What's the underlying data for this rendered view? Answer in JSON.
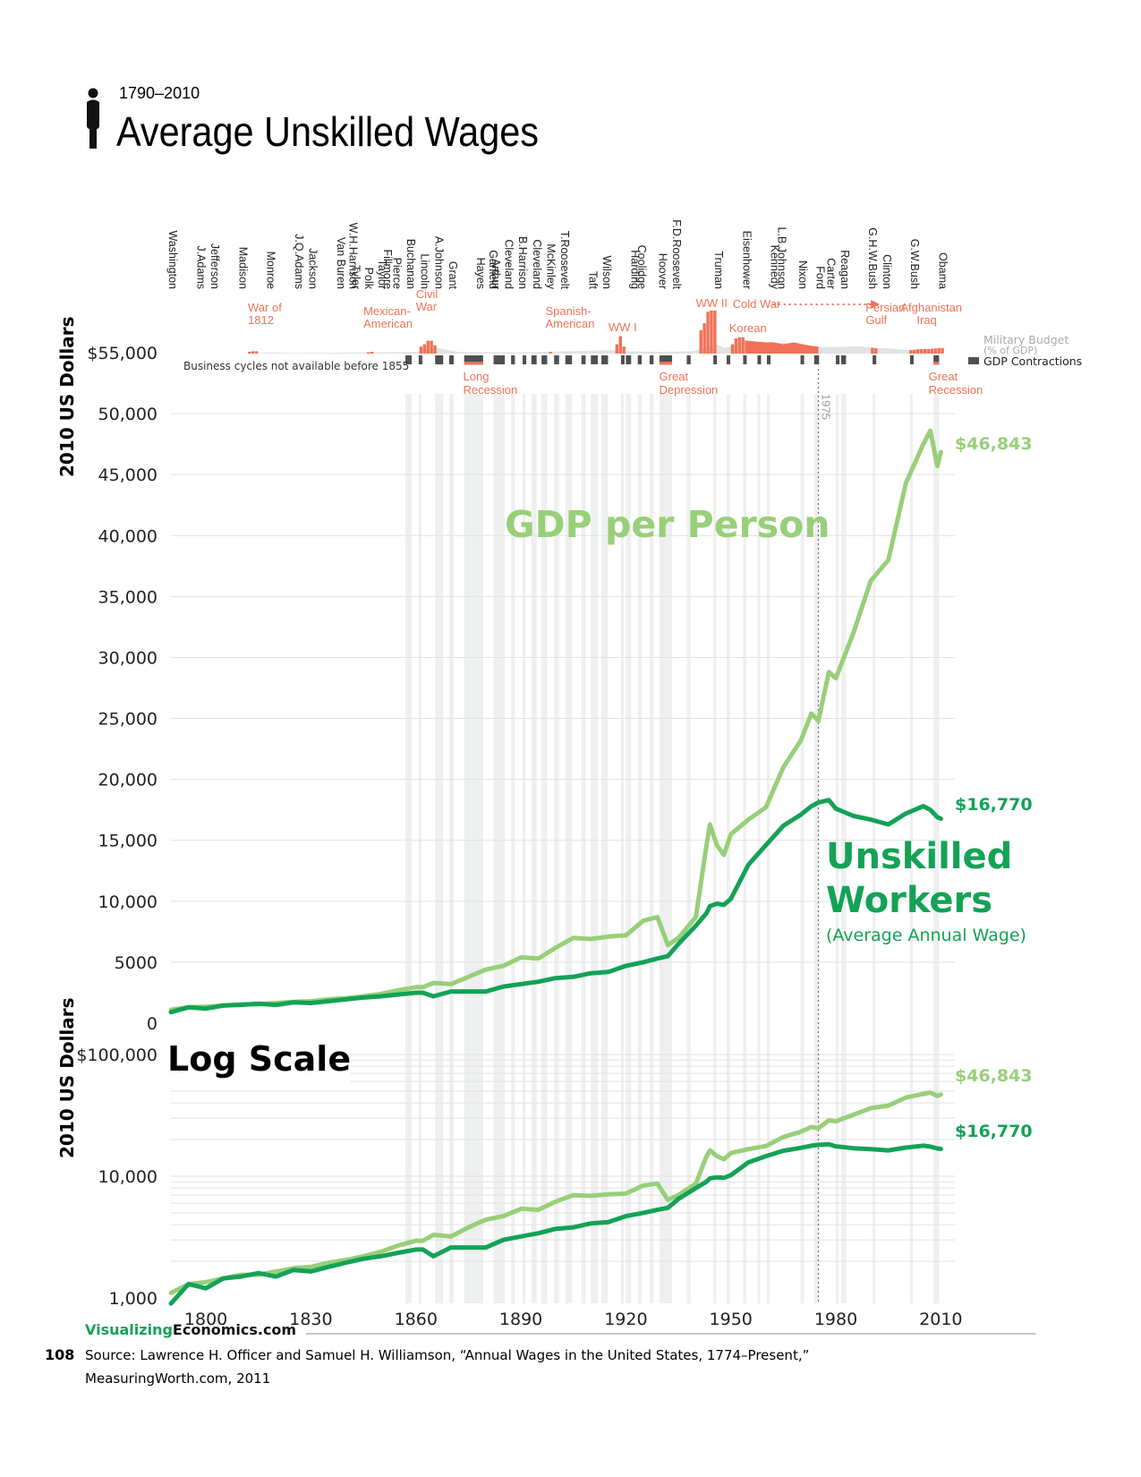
{
  "header": {
    "subtitle": "1790–2010",
    "title": "Average Unskilled Wages"
  },
  "colors": {
    "gdp": "#98cf79",
    "wage": "#14a256",
    "war": "#f07157",
    "contraction": "#4d4f52",
    "contraction_band": "#eeefef",
    "military_gray": "#c9cacb",
    "grid": "#e2e2e2"
  },
  "presidents": [
    {
      "name": "Washington",
      "year": 1789.5
    },
    {
      "name": "J.Adams",
      "year": 1797.5
    },
    {
      "name": "Jefferson",
      "year": 1801.5
    },
    {
      "name": "Madison",
      "year": 1809.5
    },
    {
      "name": "Monroe",
      "year": 1817.5
    },
    {
      "name": "J.Q.Adams",
      "year": 1825.5
    },
    {
      "name": "Jackson",
      "year": 1829.5
    },
    {
      "name": "Van Buren",
      "year": 1837.5
    },
    {
      "name": "W.H.Harrison",
      "year": 1841
    },
    {
      "name": "Tyler",
      "year": 1841.8
    },
    {
      "name": "Polk",
      "year": 1845.5
    },
    {
      "name": "Taylor",
      "year": 1849.3
    },
    {
      "name": "Fillmore",
      "year": 1850.8
    },
    {
      "name": "Pierce",
      "year": 1853.5
    },
    {
      "name": "Buchanan",
      "year": 1857.5
    },
    {
      "name": "Lincoln",
      "year": 1861.5
    },
    {
      "name": "A.Johnson",
      "year": 1865.5
    },
    {
      "name": "Grant",
      "year": 1869.5
    },
    {
      "name": "Hayes",
      "year": 1877.5
    },
    {
      "name": "Garfield",
      "year": 1881
    },
    {
      "name": "Arthur",
      "year": 1881.8
    },
    {
      "name": "Cleveland",
      "year": 1885.5
    },
    {
      "name": "B.Harrison",
      "year": 1889.5
    },
    {
      "name": "Cleveland",
      "year": 1893.5
    },
    {
      "name": "McKinley",
      "year": 1897.5
    },
    {
      "name": "T.Roosevelt",
      "year": 1901.5
    },
    {
      "name": "Taft",
      "year": 1909.5
    },
    {
      "name": "Wilson",
      "year": 1913.5
    },
    {
      "name": "Harding",
      "year": 1921.5
    },
    {
      "name": "Coolidge",
      "year": 1923.5
    },
    {
      "name": "Hoover",
      "year": 1929.5
    },
    {
      "name": "F.D.Roosevelt",
      "year": 1933.5
    },
    {
      "name": "Truman",
      "year": 1945.5
    },
    {
      "name": "Eisenhower",
      "year": 1953.5
    },
    {
      "name": "Kennedy",
      "year": 1961.5
    },
    {
      "name": "L.B.Johnson",
      "year": 1963.5
    },
    {
      "name": "Nixon",
      "year": 1969.5
    },
    {
      "name": "Ford",
      "year": 1974.5
    },
    {
      "name": "Carter",
      "year": 1977.5
    },
    {
      "name": "Reagan",
      "year": 1981.5
    },
    {
      "name": "G.H.W.Bush",
      "year": 1989.5
    },
    {
      "name": "Clinton",
      "year": 1993.5
    },
    {
      "name": "G.W.Bush",
      "year": 2001.5
    },
    {
      "name": "Obama",
      "year": 2009.5
    }
  ],
  "wars": [
    {
      "label": "War of 1812",
      "start": 1812,
      "end": 1815,
      "budget": [
        1.6,
        2,
        2
      ]
    },
    {
      "label": "Mexican-American",
      "start": 1846,
      "end": 1848,
      "budget": [
        1.2,
        1.5
      ]
    },
    {
      "label": "Civil War",
      "start": 1861,
      "end": 1865,
      "budget": [
        6,
        8,
        11,
        11,
        7
      ]
    },
    {
      "label": "Spanish-American",
      "start": 1898,
      "end": 1898,
      "budget": [
        1.5
      ]
    },
    {
      "label": "WW I",
      "start": 1917,
      "end": 1919,
      "budget": [
        8,
        15,
        6
      ]
    },
    {
      "label": "WW II",
      "start": 1941,
      "end": 1945,
      "budget": [
        20,
        26,
        36,
        37,
        37
      ]
    },
    {
      "label": "Korean",
      "start": 1950,
      "end": 1953,
      "budget": [
        8,
        13,
        14,
        14
      ]
    },
    {
      "label": "Persian Gulf",
      "start": 1990,
      "end": 1991,
      "budget": [
        5,
        4.5
      ]
    },
    {
      "label": "Afghanistan Iraq",
      "start": 2001,
      "end": 2010,
      "budget": [
        3,
        3.4,
        3.7,
        3.9,
        4,
        4,
        4.2,
        4.4,
        4.8,
        4.8
      ]
    }
  ],
  "cold_war": {
    "label": "Cold War",
    "start": 1955,
    "end": 1991
  },
  "military_budget_gray": [
    [
      1816,
      1
    ],
    [
      1825,
      0.6
    ],
    [
      1840,
      0.8
    ],
    [
      1860,
      1.5
    ],
    [
      1866,
      5
    ],
    [
      1872,
      1.5
    ],
    [
      1890,
      1
    ],
    [
      1917,
      3
    ],
    [
      1920,
      2
    ],
    [
      1930,
      1.5
    ],
    [
      1939,
      2
    ],
    [
      1946,
      8
    ],
    [
      1948,
      5
    ],
    [
      1950,
      6
    ],
    [
      1954,
      11
    ],
    [
      1960,
      9
    ],
    [
      1968,
      9
    ],
    [
      1975,
      6
    ],
    [
      1980,
      5.5
    ],
    [
      1986,
      6.5
    ],
    [
      1992,
      5
    ],
    [
      2000,
      3.2
    ],
    [
      2001,
      3
    ]
  ],
  "military_budget_cold_war": [
    [
      1954,
      11.2
    ],
    [
      1960,
      9.6
    ],
    [
      1962,
      9.8
    ],
    [
      1965,
      8
    ],
    [
      1968,
      9.6
    ],
    [
      1972,
      7
    ],
    [
      1975,
      6
    ]
  ],
  "contractions": [
    [
      1857,
      1858.8
    ],
    [
      1860.8,
      1861.5
    ],
    [
      1865.5,
      1867.8
    ],
    [
      1869.5,
      1870.8
    ],
    [
      1873.8,
      1879.2
    ],
    [
      1882.2,
      1885.4
    ],
    [
      1887.2,
      1888.3
    ],
    [
      1890.5,
      1891.3
    ],
    [
      1893,
      1894.5
    ],
    [
      1895.9,
      1897.5
    ],
    [
      1899.5,
      1900.9
    ],
    [
      1902.7,
      1904.6
    ],
    [
      1907.3,
      1908.5
    ],
    [
      1910,
      1912
    ],
    [
      1913,
      1914.9
    ],
    [
      1918.6,
      1919.2
    ],
    [
      1920,
      1921.5
    ],
    [
      1923.4,
      1924.5
    ],
    [
      1926.8,
      1927.9
    ],
    [
      1929.6,
      1933.2
    ],
    [
      1937.4,
      1938.5
    ],
    [
      1945,
      1945.8
    ],
    [
      1948.8,
      1949.8
    ],
    [
      1953.5,
      1954.4
    ],
    [
      1957.6,
      1958.3
    ],
    [
      1960.3,
      1961.1
    ],
    [
      1969.9,
      1970.9
    ],
    [
      1973.8,
      1975.2
    ],
    [
      1980,
      1980.5
    ],
    [
      1981.5,
      1982.9
    ],
    [
      1990.5,
      1991.2
    ],
    [
      2001.2,
      2001.9
    ],
    [
      2007.9,
      2009.5
    ]
  ],
  "annotations": {
    "military_budget": "Military Budget",
    "military_budget_sub": "(% of GDP)",
    "gdp_contractions": "GDP Contractions",
    "business_cycles_note": "Business cycles not available before 1855",
    "long_recession": "Long Recession",
    "great_depression": "Great Depression",
    "great_recession": "Great Recession",
    "year_1975": "1975"
  },
  "labels": {
    "y_axis": "2010 US Dollars",
    "gdp_label": "GDP per Person",
    "wage_label_1": "Unskilled",
    "wage_label_2": "Workers",
    "wage_label_3": "(Average Annual Wage)",
    "log_scale": "Log Scale",
    "end_gdp": "$46,843",
    "end_wage": "$16,770"
  },
  "chart_data": [
    {
      "type": "line",
      "title": "Average Unskilled Wages",
      "subtitle": "1790–2010",
      "scale": "linear",
      "ylabel": "2010 US Dollars",
      "ylim": [
        0,
        55000
      ],
      "yticks": [
        0,
        5000,
        10000,
        15000,
        20000,
        25000,
        30000,
        35000,
        40000,
        45000,
        50000,
        55000
      ],
      "ytick_labels": [
        "0",
        "5000",
        "10,000",
        "15,000",
        "20,000",
        "25,000",
        "30,000",
        "35,000",
        "40,000",
        "45,000",
        "50,000",
        "$55,000"
      ],
      "x": [
        1790,
        1795,
        1800,
        1805,
        1810,
        1815,
        1820,
        1825,
        1830,
        1835,
        1840,
        1845,
        1850,
        1855,
        1860,
        1862,
        1865,
        1870,
        1875,
        1880,
        1885,
        1890,
        1895,
        1900,
        1905,
        1910,
        1915,
        1920,
        1925,
        1929,
        1932,
        1935,
        1940,
        1943,
        1944,
        1946,
        1948,
        1950,
        1955,
        1960,
        1965,
        1970,
        1973,
        1975,
        1978,
        1980,
        1985,
        1990,
        1995,
        2000,
        2005,
        2007,
        2009,
        2010
      ],
      "series": [
        {
          "name": "GDP per Person",
          "values": [
            1100,
            1300,
            1350,
            1450,
            1550,
            1550,
            1650,
            1750,
            1800,
            1950,
            2050,
            2200,
            2400,
            2700,
            2950,
            2950,
            3300,
            3200,
            3800,
            4400,
            4700,
            5400,
            5300,
            6200,
            7000,
            6900,
            7100,
            7200,
            8400,
            8700,
            6400,
            7000,
            8700,
            14500,
            16300,
            14600,
            13800,
            15500,
            16700,
            17700,
            21000,
            23200,
            25400,
            24800,
            28800,
            28300,
            32000,
            36300,
            38000,
            44300,
            47500,
            48600,
            45700,
            46843
          ]
        },
        {
          "name": "Unskilled Workers (Average Annual Wage)",
          "values": [
            900,
            1300,
            1200,
            1450,
            1500,
            1600,
            1500,
            1700,
            1650,
            1800,
            1950,
            2100,
            2200,
            2350,
            2500,
            2500,
            2200,
            2600,
            2600,
            2600,
            3000,
            3200,
            3400,
            3700,
            3800,
            4100,
            4200,
            4700,
            5000,
            5300,
            5500,
            6500,
            8000,
            9000,
            9600,
            9800,
            9700,
            10200,
            13000,
            14600,
            16200,
            17100,
            17800,
            18100,
            18300,
            17600,
            17000,
            16700,
            16300,
            17200,
            17800,
            17500,
            16900,
            16770
          ]
        }
      ],
      "end_labels": [
        "$46,843",
        "$16,770"
      ]
    },
    {
      "type": "line",
      "title": "Log Scale",
      "scale": "log",
      "ylabel": "2010 US Dollars",
      "ylim": [
        1000,
        100000
      ],
      "yticks": [
        1000,
        10000,
        100000
      ],
      "ytick_labels": [
        "1,000",
        "10,000",
        "$100,000"
      ],
      "xlabel": "",
      "xticks": [
        1800,
        1830,
        1860,
        1890,
        1920,
        1950,
        1980,
        2010
      ],
      "series_ref": "same data as linear chart",
      "end_labels": [
        "$46,843",
        "$16,770"
      ]
    }
  ],
  "footer": {
    "brand_1": "Visualizing",
    "brand_2": "Economics.com",
    "page_number": "108",
    "source_line_1": "Source: Lawrence H. Officer and Samuel H. Williamson, “Annual Wages in the United States, 1774–Present,”",
    "source_line_2": "MeasuringWorth.com, 2011"
  }
}
